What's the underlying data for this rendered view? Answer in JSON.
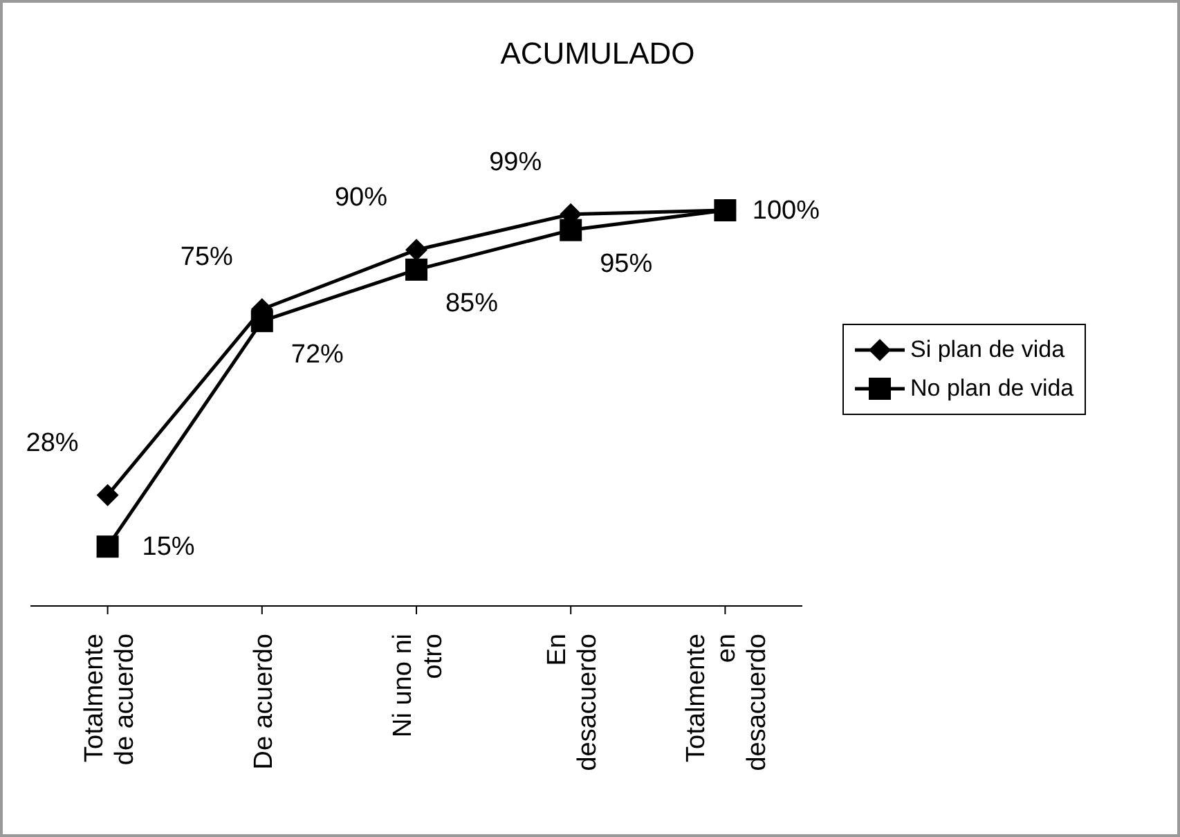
{
  "chart_data": {
    "type": "line",
    "title": "ACUMULADO",
    "categories": [
      "Totalmente de acuerdo",
      "De acuerdo",
      "Ni uno ni otro",
      "En desacuerdo",
      "Totalmente en desacuerdo"
    ],
    "series": [
      {
        "name": "Si plan de vida",
        "color": "#000000",
        "marker": "diamond",
        "values": [
          28,
          75,
          90,
          99,
          100
        ],
        "value_labels": [
          "28%",
          "75%",
          "90%",
          "99%",
          null
        ]
      },
      {
        "name": "No plan de vida",
        "color": "#000000",
        "marker": "square",
        "values": [
          15,
          72,
          85,
          95,
          100
        ],
        "value_labels": [
          "15%",
          "72%",
          "85%",
          "95%",
          "100%"
        ]
      }
    ],
    "legend": "right",
    "grid": false
  }
}
